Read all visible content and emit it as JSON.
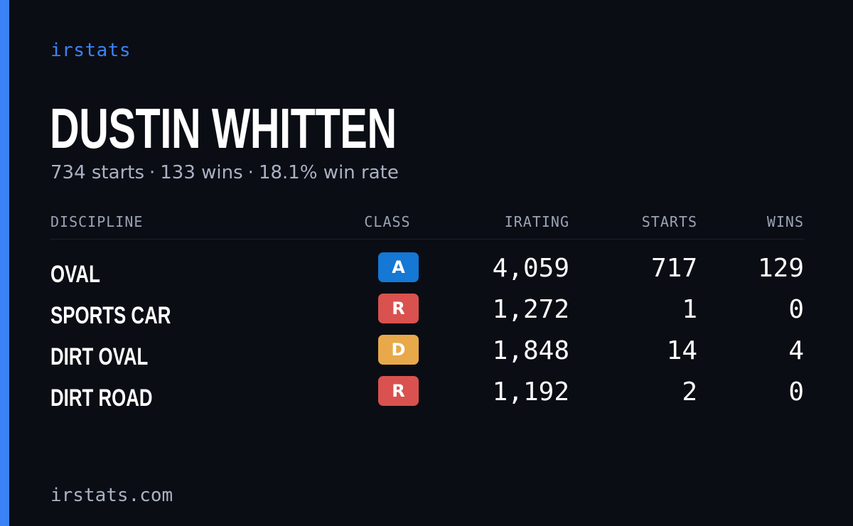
{
  "brand": "irstats",
  "driver": {
    "name": "DUSTIN WHITTEN",
    "starts_text": "734 starts",
    "wins_text": "133 wins",
    "win_rate_text": "18.1% win rate",
    "separator": "·"
  },
  "table": {
    "headers": {
      "discipline": "DISCIPLINE",
      "class": "CLASS",
      "irating": "IRATING",
      "starts": "STARTS",
      "wins": "WINS"
    },
    "rows": [
      {
        "discipline": "OVAL",
        "class": "A",
        "class_color": "#1478d4",
        "irating": "4,059",
        "starts": "717",
        "wins": "129"
      },
      {
        "discipline": "SPORTS CAR",
        "class": "R",
        "class_color": "#d9524f",
        "irating": "1,272",
        "starts": "1",
        "wins": "0"
      },
      {
        "discipline": "DIRT OVAL",
        "class": "D",
        "class_color": "#e8a94a",
        "irating": "1,848",
        "starts": "14",
        "wins": "4"
      },
      {
        "discipline": "DIRT ROAD",
        "class": "R",
        "class_color": "#d9524f",
        "irating": "1,192",
        "starts": "2",
        "wins": "0"
      }
    ]
  },
  "footer": "irstats.com",
  "colors": {
    "accent": "#3b82f6",
    "background": "#0b0d14",
    "muted_text": "#a9b2c3"
  }
}
